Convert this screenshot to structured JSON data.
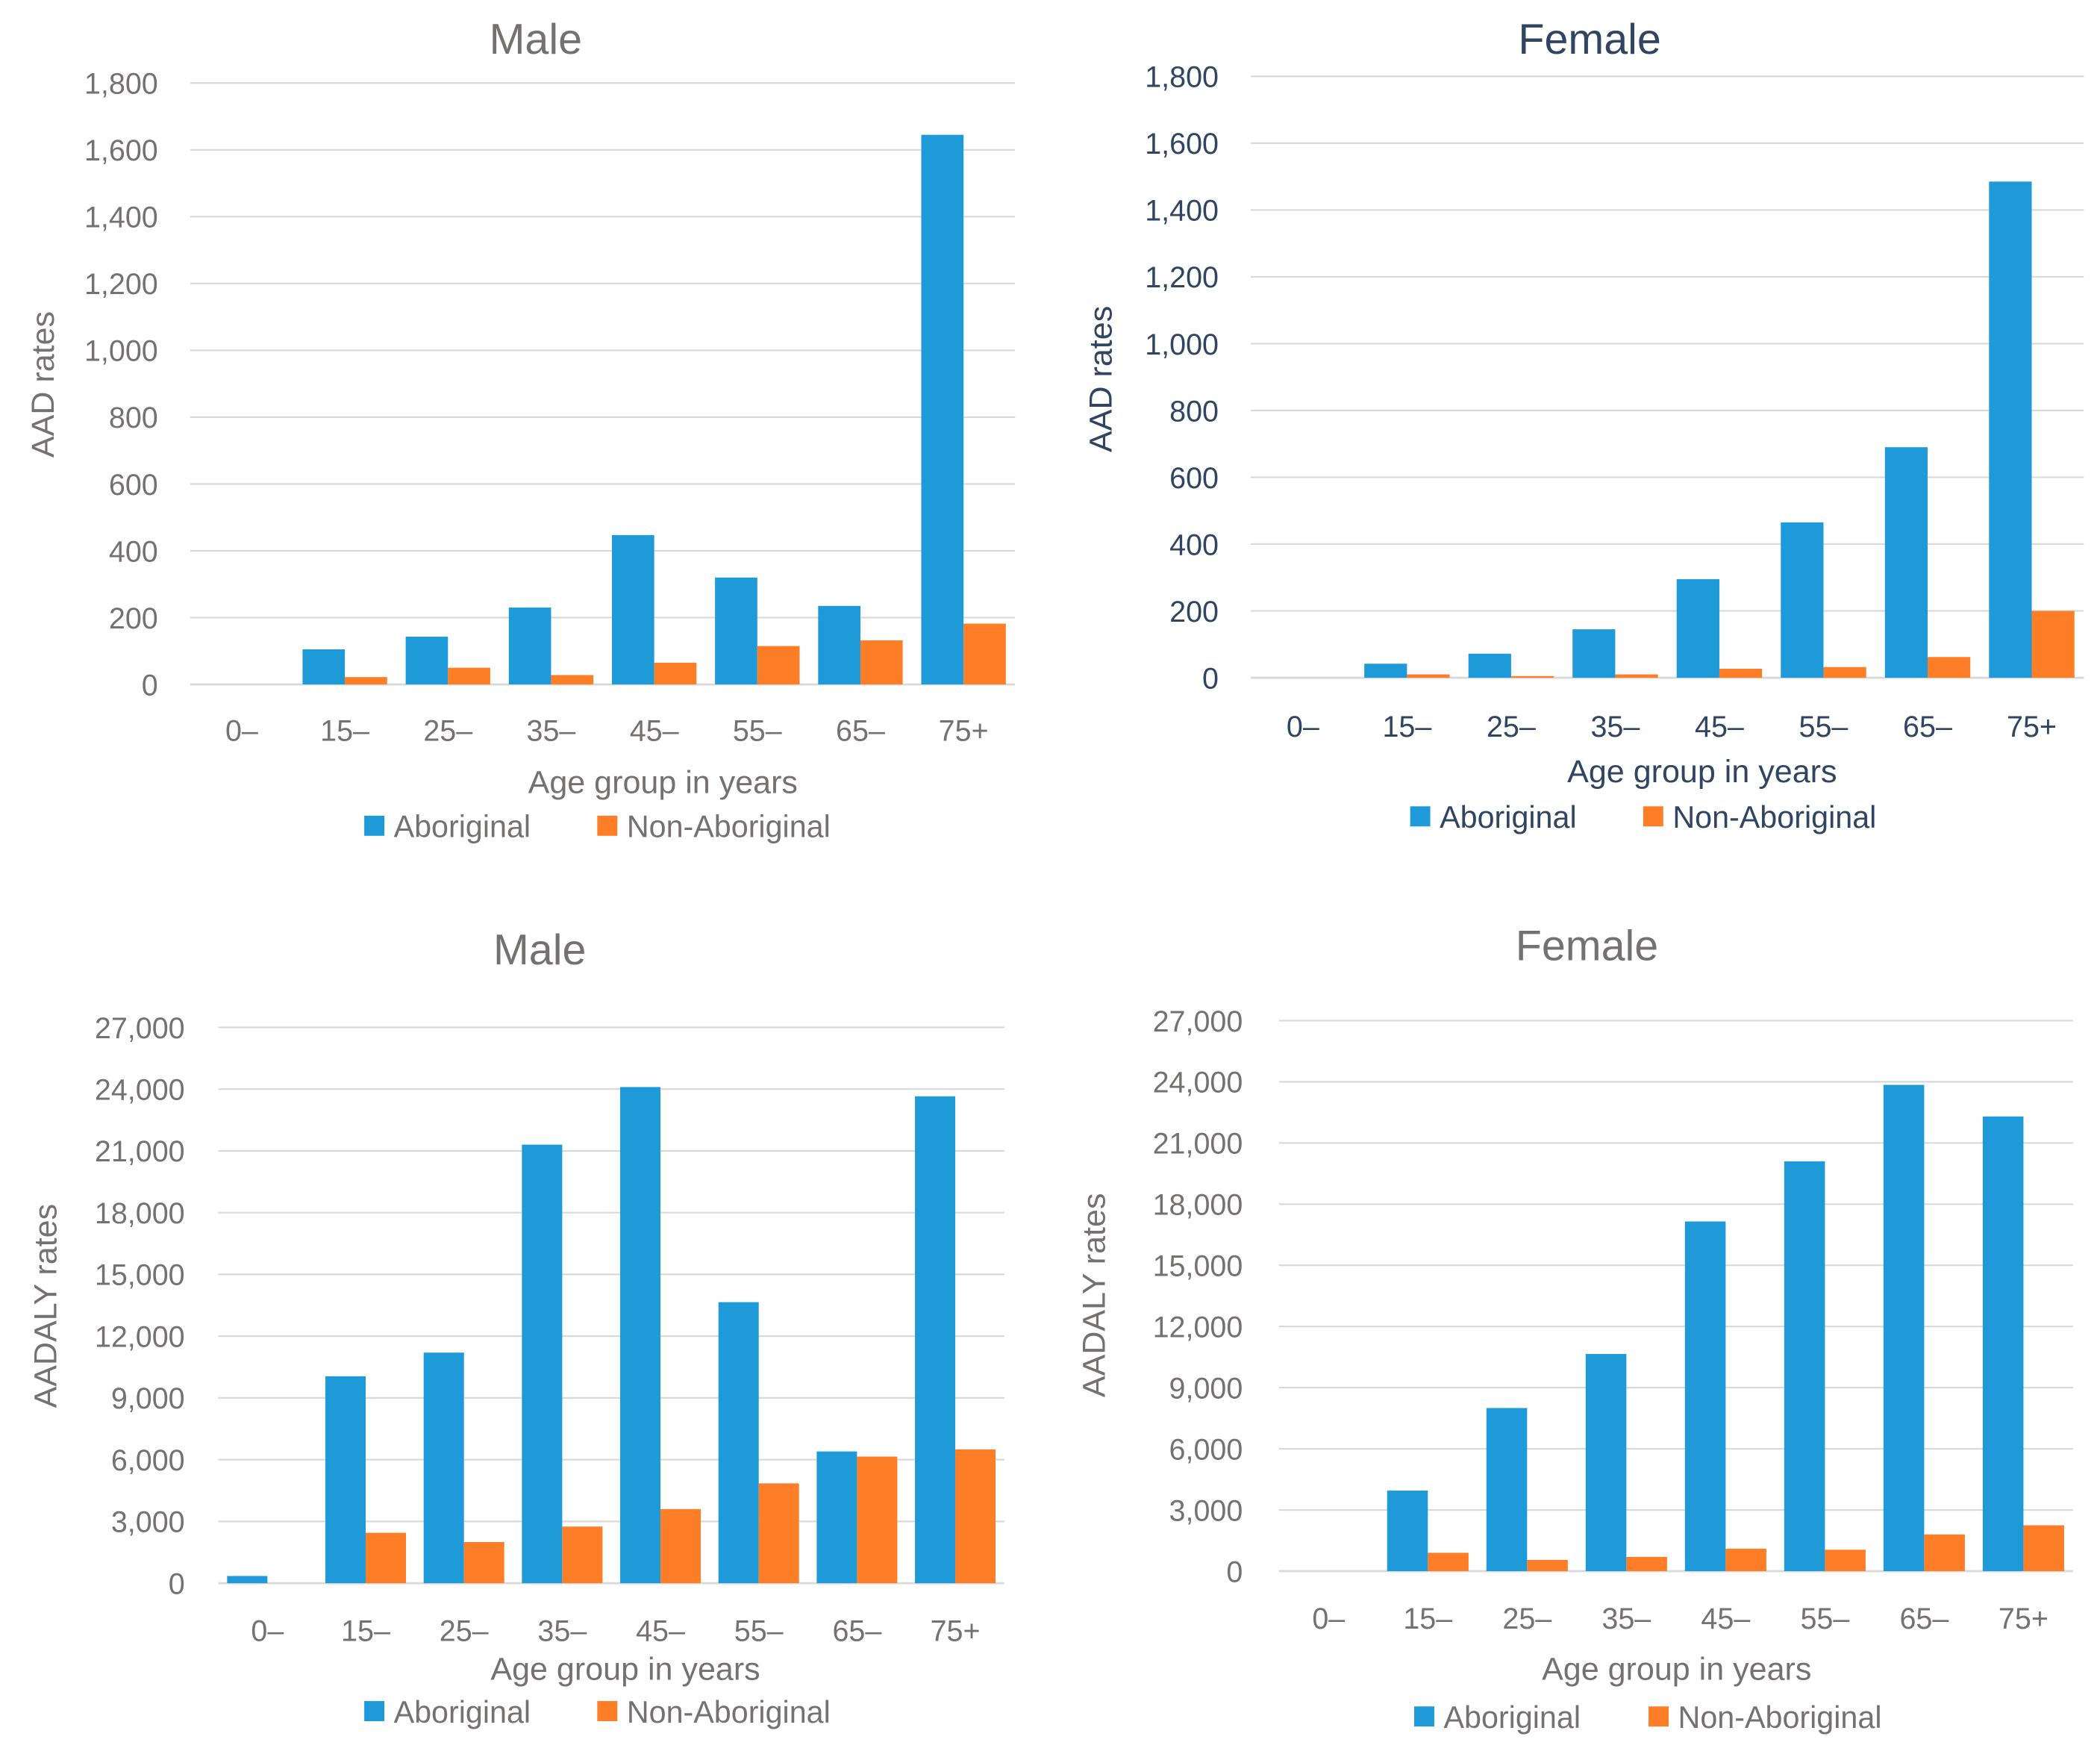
{
  "colors": {
    "aboriginal": "#1f9ad8",
    "non_aboriginal": "#fd7e26",
    "grid": "#d9d9d9",
    "text_gray": "#767171",
    "text_navy": "#2f4562"
  },
  "chart_data": [
    {
      "type": "bar",
      "title": "Male",
      "xlabel": "Age group in years",
      "ylabel": "AAD rates",
      "ylim": [
        0,
        1800
      ],
      "yticks": [
        "0",
        "200",
        "400",
        "600",
        "800",
        "1,000",
        "1,200",
        "1,400",
        "1,600",
        "1,800"
      ],
      "categories": [
        "0–",
        "15–",
        "25–",
        "35–",
        "45–",
        "55–",
        "65–",
        "75+"
      ],
      "series": [
        {
          "name": "Aboriginal",
          "values": [
            0,
            105,
            143,
            230,
            447,
            320,
            235,
            1645
          ]
        },
        {
          "name": "Non-Aboriginal",
          "values": [
            0,
            22,
            50,
            28,
            65,
            115,
            132,
            182
          ]
        }
      ],
      "legend": "bottom"
    },
    {
      "type": "bar",
      "title": "Female",
      "xlabel": "Age group in years",
      "ylabel": "AAD rates",
      "ylim": [
        0,
        1800
      ],
      "yticks": [
        "0",
        "200",
        "400",
        "600",
        "800",
        "1,000",
        "1,200",
        "1,400",
        "1,600",
        "1,800"
      ],
      "categories": [
        "0–",
        "15–",
        "25–",
        "35–",
        "45–",
        "55–",
        "65–",
        "75+"
      ],
      "series": [
        {
          "name": "Aboriginal",
          "values": [
            0,
            42,
            72,
            145,
            295,
            465,
            690,
            1485
          ]
        },
        {
          "name": "Non-Aboriginal",
          "values": [
            0,
            10,
            5,
            10,
            27,
            32,
            62,
            200
          ]
        }
      ],
      "legend": "bottom"
    },
    {
      "type": "bar",
      "title": "Male",
      "xlabel": "Age group in years",
      "ylabel": "AADALY rates",
      "ylim": [
        0,
        27000
      ],
      "yticks": [
        "0",
        "3,000",
        "6,000",
        "9,000",
        "12,000",
        "15,000",
        "18,000",
        "21,000",
        "24,000",
        "27,000"
      ],
      "categories": [
        "0–",
        "15–",
        "25–",
        "35–",
        "45–",
        "55–",
        "65–",
        "75+"
      ],
      "series": [
        {
          "name": "Aboriginal",
          "values": [
            350,
            10050,
            11200,
            21300,
            24100,
            13650,
            6400,
            23650
          ]
        },
        {
          "name": "Non-Aboriginal",
          "values": [
            0,
            2450,
            2000,
            2750,
            3600,
            4850,
            6150,
            6500
          ]
        }
      ],
      "legend": "bottom"
    },
    {
      "type": "bar",
      "title": "Female",
      "xlabel": "Age group in years",
      "ylabel": "AADALY rates",
      "ylim": [
        0,
        27000
      ],
      "yticks": [
        "0",
        "3,000",
        "6,000",
        "9,000",
        "12,000",
        "15,000",
        "18,000",
        "21,000",
        "24,000",
        "27,000"
      ],
      "categories": [
        "0–",
        "15–",
        "25–",
        "35–",
        "45–",
        "55–",
        "65–",
        "75+"
      ],
      "series": [
        {
          "name": "Aboriginal",
          "values": [
            0,
            3950,
            8000,
            10650,
            17150,
            20100,
            23850,
            22300
          ]
        },
        {
          "name": "Non-Aboriginal",
          "values": [
            0,
            900,
            550,
            700,
            1100,
            1050,
            1800,
            2250
          ]
        }
      ],
      "legend": "bottom"
    }
  ]
}
